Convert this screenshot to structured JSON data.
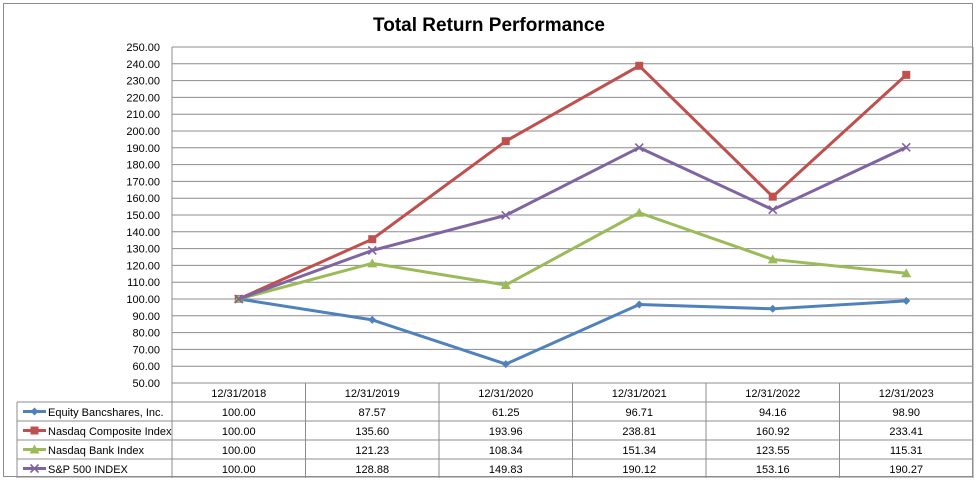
{
  "chart_data": {
    "type": "line",
    "title": "Total Return Performance",
    "categories": [
      "12/31/2018",
      "12/31/2019",
      "12/31/2020",
      "12/31/2021",
      "12/31/2022",
      "12/31/2023"
    ],
    "ylim": [
      50,
      250
    ],
    "ystep": 10,
    "ytick_decimals": 2,
    "grid": true,
    "legend": "data-table-below",
    "series": [
      {
        "name": "Equity Bancshares, Inc.",
        "values": [
          100.0,
          87.57,
          61.25,
          96.71,
          94.16,
          98.9
        ],
        "labels": [
          "100.00",
          "87.57",
          "61.25",
          "96.71",
          "94.16",
          "98.90"
        ],
        "color": "#4f81bd",
        "marker": "diamond"
      },
      {
        "name": "Nasdaq Composite Index",
        "values": [
          100.0,
          135.6,
          193.96,
          238.81,
          160.92,
          233.41
        ],
        "labels": [
          "100.00",
          "135.60",
          "193.96",
          "238.81",
          "160.92",
          "233.41"
        ],
        "color": "#c0504d",
        "marker": "square"
      },
      {
        "name": "Nasdaq Bank Index",
        "values": [
          100.0,
          121.23,
          108.34,
          151.34,
          123.55,
          115.31
        ],
        "labels": [
          "100.00",
          "121.23",
          "108.34",
          "151.34",
          "123.55",
          "115.31"
        ],
        "color": "#9bbb59",
        "marker": "triangle"
      },
      {
        "name": "S&P 500 INDEX",
        "values": [
          100.0,
          128.88,
          149.83,
          190.12,
          153.16,
          190.27
        ],
        "labels": [
          "100.00",
          "128.88",
          "149.83",
          "190.12",
          "153.16",
          "190.27"
        ],
        "color": "#8064a2",
        "marker": "x"
      }
    ]
  }
}
